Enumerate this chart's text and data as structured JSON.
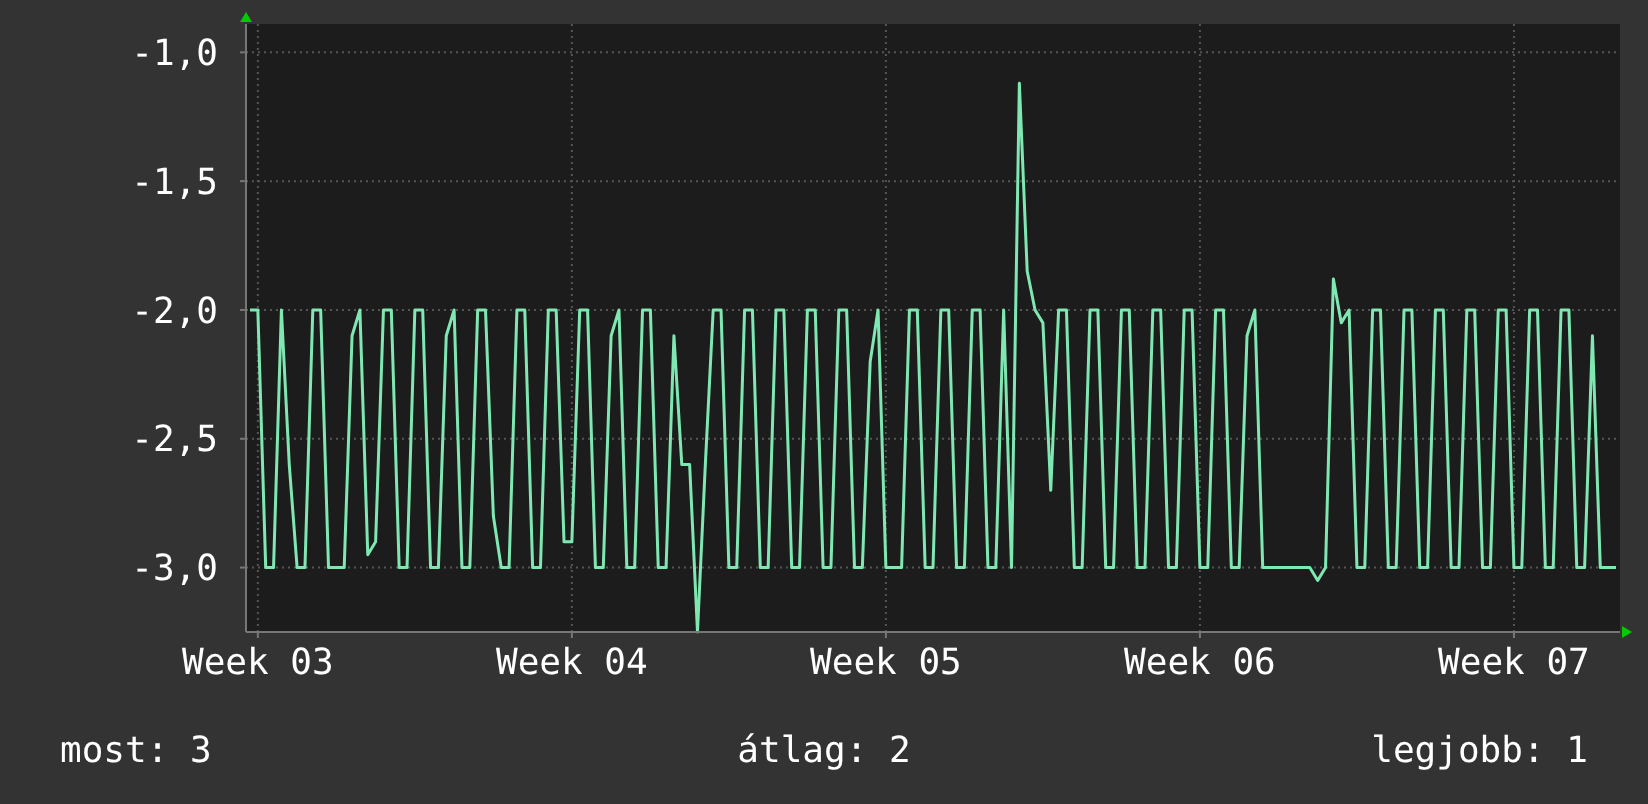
{
  "chart_data": {
    "type": "line",
    "ylim": [
      -3.25,
      -0.89
    ],
    "categories": [
      null,
      "Week 03",
      null,
      null,
      null,
      null,
      null,
      null,
      null,
      null,
      null,
      null,
      null,
      null,
      null,
      null,
      null,
      null,
      null,
      null,
      null,
      null,
      null,
      null,
      null,
      null,
      null,
      null,
      null,
      null,
      null,
      null,
      null,
      null,
      null,
      null,
      null,
      null,
      null,
      null,
      null,
      "Week 04",
      null,
      null,
      null,
      null,
      null,
      null,
      null,
      null,
      null,
      null,
      null,
      null,
      null,
      null,
      null,
      null,
      null,
      null,
      null,
      null,
      null,
      null,
      null,
      null,
      null,
      null,
      null,
      null,
      null,
      null,
      null,
      null,
      null,
      null,
      null,
      null,
      null,
      null,
      null,
      "Week 05",
      null,
      null,
      null,
      null,
      null,
      null,
      null,
      null,
      null,
      null,
      null,
      null,
      null,
      null,
      null,
      null,
      null,
      null,
      null,
      null,
      null,
      null,
      null,
      null,
      null,
      null,
      null,
      null,
      null,
      null,
      null,
      null,
      null,
      null,
      null,
      null,
      null,
      null,
      null,
      "Week 06",
      null,
      null,
      null,
      null,
      null,
      null,
      null,
      null,
      null,
      null,
      null,
      null,
      null,
      null,
      null,
      null,
      null,
      null,
      null,
      null,
      null,
      null,
      null,
      null,
      null,
      null,
      null,
      null,
      null,
      null,
      null,
      null,
      null,
      null,
      null,
      null,
      null,
      null,
      null,
      "Week 07",
      null,
      null,
      null,
      null,
      null,
      null,
      null,
      null,
      null,
      null,
      null,
      null,
      null
    ],
    "yticks": [
      {
        "value": -1,
        "label": "-1,0"
      },
      {
        "value": -1.5,
        "label": "-1,5"
      },
      {
        "value": -2,
        "label": "-2,0"
      },
      {
        "value": -2.5,
        "label": "-2,5"
      },
      {
        "value": -3,
        "label": "-3,0"
      }
    ],
    "grid": true,
    "marker": "none",
    "line_style": "solid",
    "annotations": [
      "most: 3",
      "átlag: 2",
      "legjobb: 1"
    ],
    "series": [
      {
        "color": "#7fe8b2",
        "values": [
          -2,
          -2,
          -3,
          -3,
          -2,
          -2.6,
          -3,
          -3,
          -2,
          -2,
          -3,
          -3,
          -3,
          -2.1,
          -2,
          -2.95,
          -2.9,
          -2,
          -2,
          -3,
          -3,
          -2,
          -2,
          -3,
          -3,
          -2.1,
          -2,
          -3,
          -3,
          -2,
          -2,
          -2.8,
          -3,
          -3,
          -2,
          -2,
          -3,
          -3,
          -2,
          -2,
          -2.9,
          -2.9,
          -2,
          -2,
          -3,
          -3,
          -2.1,
          -2,
          -3,
          -3,
          -2,
          -2,
          -3,
          -3,
          -2.1,
          -2.6,
          -2.6,
          -3.25,
          -2.6,
          -2,
          -2,
          -3,
          -3,
          -2,
          -2,
          -3,
          -3,
          -2,
          -2,
          -3,
          -3,
          -2,
          -2,
          -3,
          -3,
          -2,
          -2,
          -3,
          -3,
          -2.2,
          -2,
          -3,
          -3,
          -3,
          -2,
          -2,
          -3,
          -3,
          -2,
          -2,
          -3,
          -3,
          -2,
          -2,
          -3,
          -3,
          -2,
          -3,
          -1.12,
          -1.85,
          -2,
          -2.05,
          -2.7,
          -2,
          -2,
          -3,
          -3,
          -2,
          -2,
          -3,
          -3,
          -2,
          -2,
          -3,
          -3,
          -2,
          -2,
          -3,
          -3,
          -2,
          -2,
          -3,
          -3,
          -2,
          -2,
          -3,
          -3,
          -2.1,
          -2,
          -3,
          -3,
          -3,
          -3,
          -3,
          -3,
          -3,
          -3.05,
          -3,
          -1.88,
          -2.05,
          -2,
          -3,
          -3,
          -2,
          -2,
          -3,
          -3,
          -2,
          -2,
          -3,
          -3,
          -2,
          -2,
          -3,
          -3,
          -2,
          -2,
          -3,
          -3,
          -2,
          -2,
          -3,
          -3,
          -2,
          -2,
          -3,
          -3,
          -2,
          -2,
          -3,
          -3,
          -2.1,
          -3,
          -3,
          -3
        ]
      }
    ]
  }
}
